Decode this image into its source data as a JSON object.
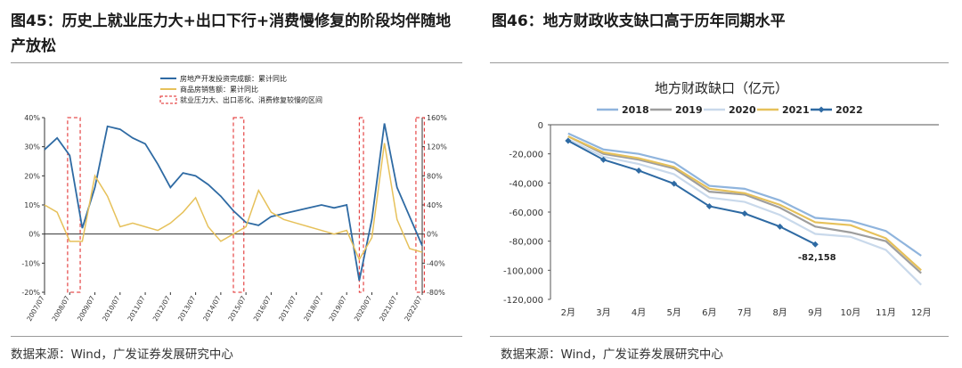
{
  "figures": [
    {
      "title": "图45：历史上就业压力大+出口下行+消费慢修复的阶段均伴随地产放松",
      "source": "数据来源：Wind，广发证券发展研究中心"
    },
    {
      "title": "图46：地方财政收支缺口高于历年同期水平",
      "source": "数据来源：Wind，广发证券发展研究中心"
    }
  ],
  "chart_data": [
    {
      "type": "line",
      "title": "",
      "x": [
        "2007/07",
        "2008/01",
        "2008/07",
        "2009/01",
        "2009/07",
        "2010/01",
        "2010/07",
        "2011/01",
        "2011/07",
        "2012/01",
        "2012/07",
        "2013/01",
        "2013/07",
        "2014/01",
        "2014/07",
        "2015/01",
        "2015/07",
        "2016/01",
        "2016/07",
        "2017/01",
        "2017/07",
        "2018/01",
        "2018/07",
        "2019/01",
        "2019/07",
        "2020/01",
        "2020/07",
        "2021/01",
        "2021/07",
        "2022/01",
        "2022/07"
      ],
      "xticks": [
        "2007/07",
        "2008/07",
        "2009/07",
        "2010/07",
        "2011/07",
        "2012/07",
        "2013/07",
        "2014/07",
        "2015/07",
        "2016/07",
        "2017/07",
        "2018/07",
        "2019/07",
        "2020/07",
        "2021/07",
        "2022/07"
      ],
      "ylim": [
        -20,
        40
      ],
      "yticks_left": [
        "40%",
        "30%",
        "20%",
        "10%",
        "0%",
        "-10%",
        "-20%"
      ],
      "y2lim": [
        -80,
        160
      ],
      "yticks_right": [
        "160%",
        "120%",
        "80%",
        "40%",
        "0%",
        "-40%",
        "-80%"
      ],
      "series": [
        {
          "name": "房地产开发投资完成额：累计同比",
          "axis": "left",
          "color": "#2e6aa3",
          "values": [
            29,
            33,
            27,
            2,
            16,
            37,
            36,
            33,
            31,
            24,
            16,
            21,
            20,
            17,
            13,
            8,
            4,
            3,
            6,
            7,
            8,
            9,
            10,
            9,
            10,
            -16,
            5,
            38,
            16,
            6,
            -4
          ]
        },
        {
          "name": "商品房销售额：累计同比",
          "axis": "right",
          "color": "#e6c15a",
          "values": [
            40,
            30,
            -10,
            -10,
            80,
            52,
            10,
            15,
            10,
            5,
            15,
            30,
            50,
            10,
            -10,
            0,
            10,
            60,
            30,
            20,
            15,
            10,
            5,
            0,
            5,
            -35,
            -5,
            125,
            20,
            -20,
            -25
          ]
        }
      ],
      "highlight_legend": "就业压力大、出口恶化、消费修复较慢的区间",
      "highlight_periods": [
        [
          "2008/06",
          "2008/12"
        ],
        [
          "2015/01",
          "2015/06"
        ],
        [
          "2020/01",
          "2020/03"
        ],
        [
          "2022/04",
          "2022/08"
        ]
      ],
      "legend_position": "top-center"
    },
    {
      "type": "line",
      "title": "地方财政缺口（亿元）",
      "categories": [
        "2月",
        "3月",
        "4月",
        "5月",
        "6月",
        "7月",
        "8月",
        "9月",
        "10月",
        "11月",
        "12月"
      ],
      "ylim": [
        -120000,
        0
      ],
      "yticks": [
        "0",
        "-20,000",
        "-40,000",
        "-60,000",
        "-80,000",
        "-100,000",
        "-120,000"
      ],
      "series": [
        {
          "name": "2018",
          "color": "#8fb4dd",
          "values": [
            -6000,
            -17000,
            -20000,
            -26000,
            -42000,
            -44000,
            -52000,
            -64000,
            -66000,
            -73000,
            -90000
          ]
        },
        {
          "name": "2019",
          "color": "#9e9e9e",
          "values": [
            -8000,
            -20000,
            -24000,
            -30000,
            -46000,
            -48000,
            -57000,
            -70000,
            -74000,
            -80000,
            -102000
          ]
        },
        {
          "name": "2020",
          "color": "#c9d9eb",
          "values": [
            -10000,
            -22000,
            -27000,
            -34000,
            -50000,
            -53000,
            -62000,
            -75000,
            -77000,
            -86000,
            -110000
          ]
        },
        {
          "name": "2021",
          "color": "#e6c15a",
          "values": [
            -8000,
            -19000,
            -23000,
            -29000,
            -44000,
            -47000,
            -55000,
            -67000,
            -69000,
            -78000,
            -100000
          ]
        },
        {
          "name": "2022",
          "color": "#2e6aa3",
          "marker": "diamond",
          "values": [
            -11000,
            -24000,
            -31500,
            -40500,
            -56000,
            -61000,
            -70000,
            -82158,
            null,
            null,
            null
          ]
        }
      ],
      "annotation": "-82,158",
      "legend_position": "top"
    }
  ]
}
